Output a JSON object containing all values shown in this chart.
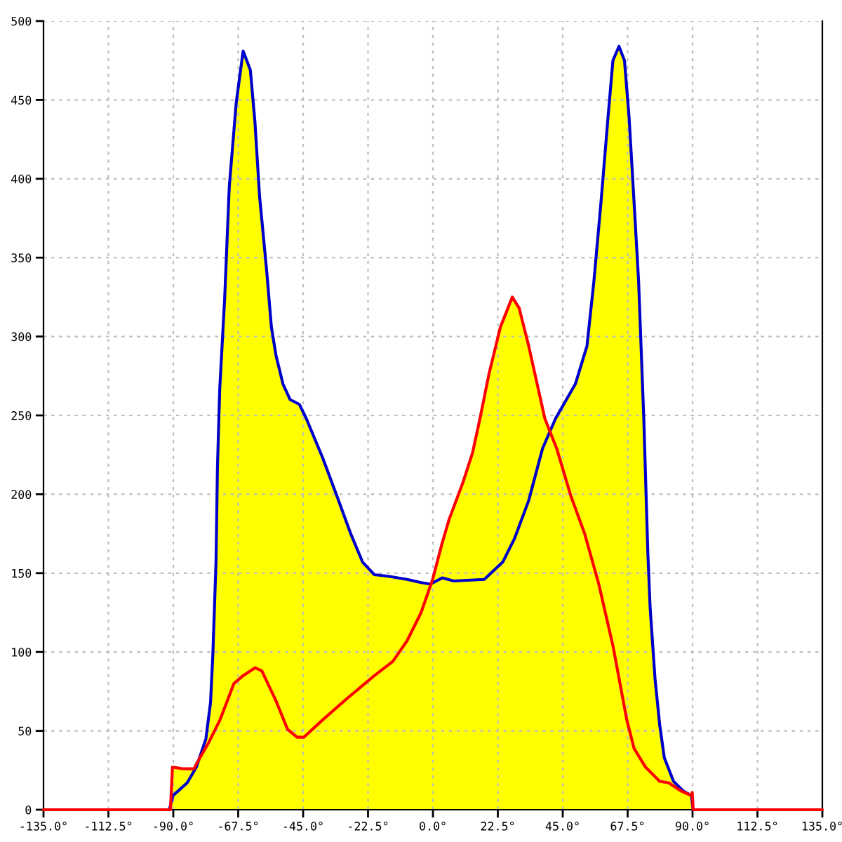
{
  "chart_data": {
    "type": "line",
    "series": [
      {
        "color": "#0000cc",
        "x": [
          -91.4,
          -90.1,
          -85.2,
          -82,
          -78.7,
          -77.1,
          -76.3,
          -75.2,
          -74.7,
          -73.9,
          -72.2,
          -70.6,
          -68.2,
          -65.8,
          -63.3,
          -61.7,
          -60.1,
          -57.6,
          -56,
          -54.4,
          -52,
          -49.5,
          -46.3,
          -43.9,
          -38.2,
          -33.3,
          -28.5,
          -24.4,
          -20.3,
          -15.5,
          -9,
          -4.1,
          -0.9,
          3.2,
          7.2,
          17.8,
          24.2,
          28.3,
          33.2,
          38,
          42.5,
          49.4,
          53.4,
          55.8,
          58.3,
          60.7,
          62.4,
          64.5,
          66.4,
          68,
          69.7,
          71.3,
          73.1,
          74.5,
          75.3,
          77,
          78.6,
          80.2,
          83.4,
          86.7,
          89.6,
          90.2
        ],
        "values": [
          0,
          9,
          17,
          27,
          45,
          68,
          98,
          157,
          217,
          267,
          324,
          395,
          448,
          481,
          469,
          436,
          389,
          341,
          306,
          288,
          270,
          260,
          257,
          248,
          223,
          199,
          175,
          157,
          149,
          148,
          146,
          144,
          143,
          147,
          145,
          146,
          157,
          172,
          196,
          229,
          248,
          270,
          294,
          335,
          386,
          439,
          475,
          484,
          475,
          439,
          386,
          335,
          248,
          163,
          128,
          83,
          54,
          33,
          18,
          12,
          9,
          0
        ]
      },
      {
        "color": "#ff0000",
        "x": [
          -135,
          -91,
          -90.3,
          -86.8,
          -82.8,
          -82,
          -77.9,
          -73.8,
          -69,
          -65.8,
          -61.7,
          -59.3,
          -54.4,
          -50.4,
          -47.1,
          -44.7,
          -38.2,
          -30.1,
          -20.3,
          -13.9,
          -9,
          -4.1,
          -0.1,
          3.2,
          5.6,
          10.5,
          13.7,
          16.2,
          19.4,
          23.4,
          27.5,
          29.9,
          33.2,
          38.8,
          42.9,
          47.8,
          52.6,
          57.5,
          62.4,
          67.2,
          69.7,
          73.7,
          78.6,
          81.8,
          85.9,
          89.6,
          89.9,
          90.2,
          135
        ],
        "values": [
          0,
          0,
          27,
          26,
          26,
          29,
          42,
          57,
          80,
          85,
          90,
          88,
          69,
          51,
          46,
          46,
          57,
          70,
          85,
          94,
          107,
          125,
          146,
          169,
          184,
          208,
          226,
          247,
          276,
          306,
          325,
          318,
          294,
          248,
          229,
          199,
          175,
          143,
          104,
          57,
          39,
          27,
          18,
          17,
          12,
          9,
          11,
          0,
          0
        ]
      },
      {
        "type": "area",
        "color": "#ffff00",
        "x": [
          -135,
          -91.4,
          -91,
          -90.3,
          -86.8,
          -82.8,
          -82,
          -80.5,
          -78.7,
          -77.1,
          -76.3,
          -75.2,
          -74.7,
          -73.9,
          -72.2,
          -70.6,
          -68.2,
          -65.8,
          -63.3,
          -61.7,
          -60.1,
          -57.6,
          -56,
          -54.4,
          -52,
          -49.5,
          -46.3,
          -43.9,
          -38.2,
          -33.3,
          -28.5,
          -24.4,
          -20.3,
          -15.5,
          -9,
          -4.1,
          -0.7,
          -0.1,
          3.2,
          5.6,
          10.5,
          13.7,
          16.2,
          19.4,
          23.4,
          27.5,
          29.9,
          33.2,
          38.8,
          40.6,
          42.5,
          49.4,
          53.4,
          55.8,
          58.3,
          60.7,
          62.4,
          64.5,
          66.4,
          68,
          69.7,
          71.3,
          73.1,
          74.5,
          75.3,
          77,
          78.6,
          80.2,
          83.4,
          86.7,
          89.6,
          89.9,
          90.2,
          135
        ],
        "values": [
          0,
          0,
          3,
          27,
          26,
          26,
          29,
          34,
          45,
          68,
          98,
          157,
          217,
          267,
          324,
          395,
          448,
          481,
          469,
          436,
          389,
          341,
          306,
          288,
          270,
          260,
          257,
          248,
          223,
          199,
          175,
          157,
          149,
          148,
          146,
          144,
          143,
          146,
          169,
          184,
          208,
          226,
          247,
          276,
          306,
          325,
          318,
          294,
          248,
          240,
          248,
          270,
          294,
          335,
          386,
          439,
          475,
          484,
          475,
          439,
          386,
          335,
          248,
          163,
          128,
          83,
          54,
          33,
          18,
          12,
          9,
          11,
          0,
          0
        ]
      }
    ],
    "xlim": [
      -135,
      135
    ],
    "xticks": [
      {
        "value": -135,
        "label": "-135.0°"
      },
      {
        "value": -112.5,
        "label": "-112.5°"
      },
      {
        "value": -90,
        "label": "-90.0°"
      },
      {
        "value": -67.5,
        "label": "-67.5°"
      },
      {
        "value": -45,
        "label": "-45.0°"
      },
      {
        "value": -22.5,
        "label": "-22.5°"
      },
      {
        "value": 0,
        "label": "0.0°"
      },
      {
        "value": 22.5,
        "label": "22.5°"
      },
      {
        "value": 45,
        "label": "45.0°"
      },
      {
        "value": 67.5,
        "label": "67.5°"
      },
      {
        "value": 90,
        "label": "90.0°"
      },
      {
        "value": 112.5,
        "label": "112.5°"
      },
      {
        "value": 135,
        "label": "135.0°"
      }
    ],
    "ylim": [
      0,
      500
    ],
    "yticks": [
      0,
      50,
      100,
      150,
      200,
      250,
      300,
      350,
      400,
      450,
      500
    ],
    "grid": true
  }
}
